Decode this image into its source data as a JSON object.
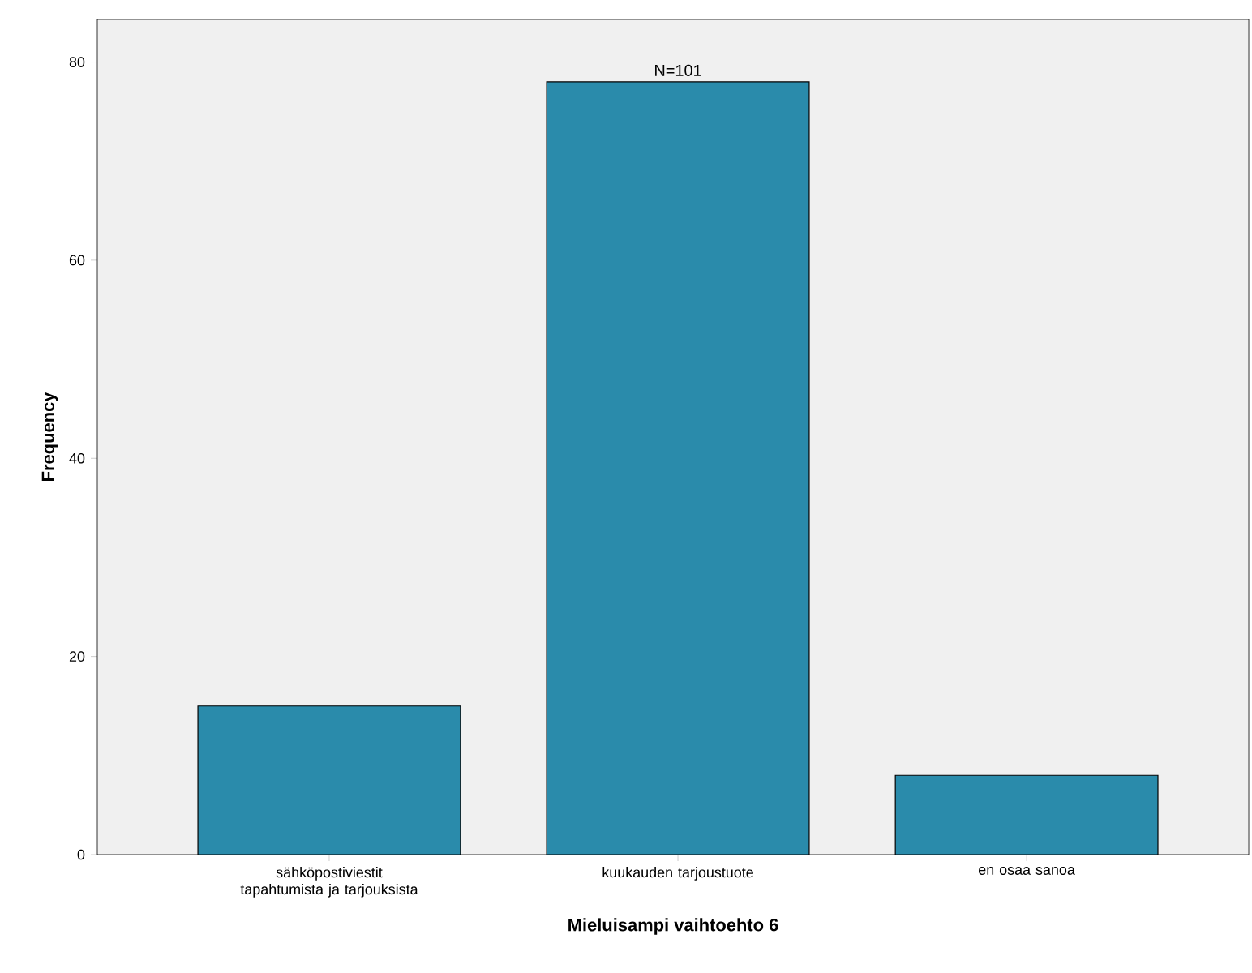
{
  "chart_data": {
    "type": "bar",
    "xlabel": "Mieluisampi vaihtoehto 6",
    "ylabel": "Frequency",
    "categories": [
      "sähköpostiviestit tapahtumista ja tarjouksista",
      "kuukauden tarjoustuote",
      "en osaa sanoa"
    ],
    "values": [
      15,
      78,
      8
    ],
    "color": "#2a8bab",
    "ylim": [
      0,
      84.3
    ],
    "yticks": [
      0,
      20,
      40,
      60,
      80
    ],
    "annotations": [
      {
        "text": "N=101",
        "x": "kuukauden tarjoustuote",
        "y": 78
      }
    ],
    "grid": false
  }
}
